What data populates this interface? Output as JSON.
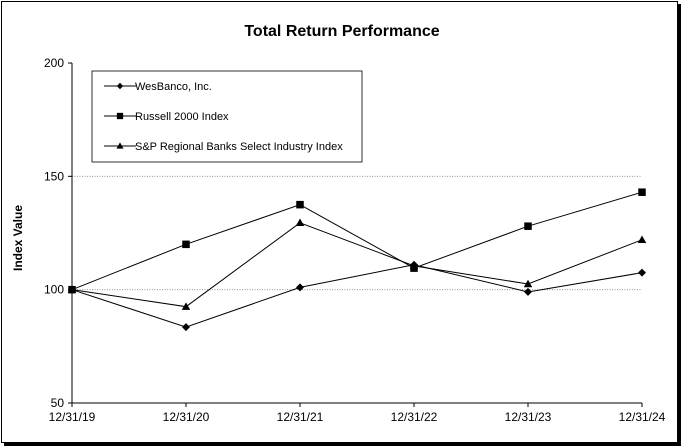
{
  "chart_data": {
    "type": "line",
    "title": "Total Return Performance",
    "xlabel": "",
    "ylabel": "Index Value",
    "x": [
      "12/31/19",
      "12/31/20",
      "12/31/21",
      "12/31/22",
      "12/31/23",
      "12/31/24"
    ],
    "ylim": [
      50,
      200
    ],
    "yticks": [
      50,
      100,
      150,
      200
    ],
    "grid": "horizontal dotted at 150 and 100",
    "legend_position": "top-left",
    "series": [
      {
        "name": "WesBanco, Inc.",
        "marker": "diamond",
        "values": [
          100,
          83.5,
          101,
          111,
          99,
          107.5
        ]
      },
      {
        "name": "Russell 2000 Index",
        "marker": "square",
        "values": [
          100,
          120,
          137.5,
          109.5,
          128,
          143
        ]
      },
      {
        "name": "S&P Regional Banks Select Industry Index",
        "marker": "triangle",
        "values": [
          100,
          92.5,
          129.5,
          110.5,
          102.5,
          122
        ]
      }
    ],
    "colors": {
      "line": "#000000",
      "grid": "#808080",
      "background": "#ffffff"
    }
  }
}
